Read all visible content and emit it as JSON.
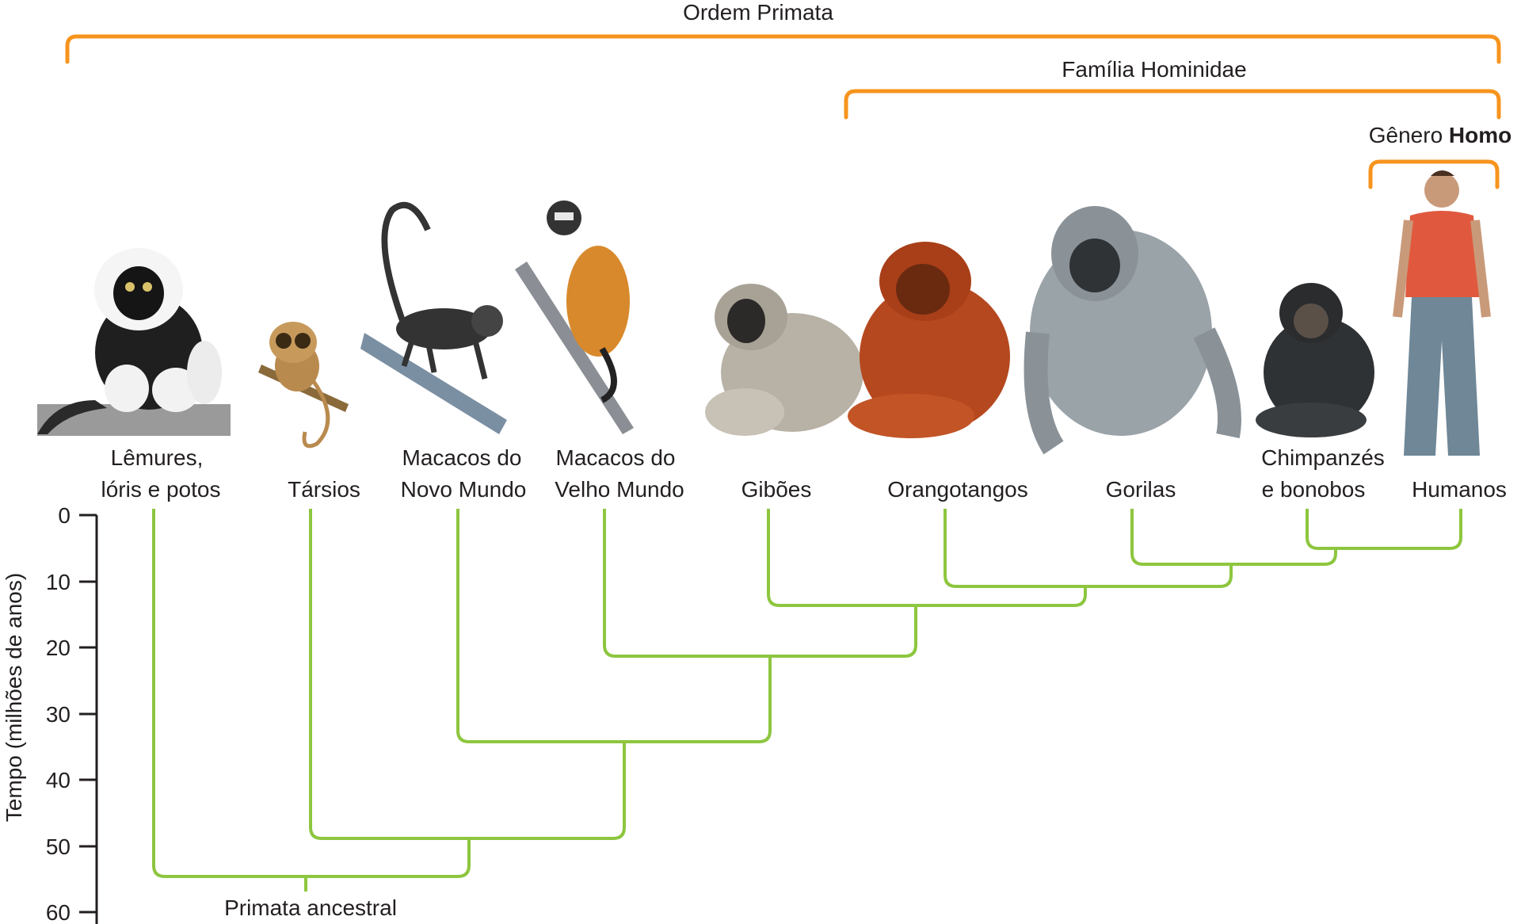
{
  "groups": {
    "order": "Ordem Primata",
    "family": "Família Hominidae",
    "genus_prefix": "Gênero ",
    "genus_name": "Homo"
  },
  "taxa": [
    {
      "id": "lemurs",
      "line1": "Lêmures,",
      "line2": "lóris e potos",
      "icon": "lemur-icon"
    },
    {
      "id": "tarsiers",
      "line1": "",
      "line2": "Társios",
      "icon": "tarsier-icon"
    },
    {
      "id": "new-world",
      "line1": "Macacos do",
      "line2": "Novo Mundo",
      "icon": "new-world-monkey-icon"
    },
    {
      "id": "old-world",
      "line1": "Macacos do",
      "line2": "Velho Mundo",
      "icon": "old-world-monkey-icon"
    },
    {
      "id": "gibbons",
      "line1": "",
      "line2": "Gibões",
      "icon": "gibbon-icon"
    },
    {
      "id": "orangutans",
      "line1": "",
      "line2": "Orangotangos",
      "icon": "orangutan-icon"
    },
    {
      "id": "gorillas",
      "line1": "",
      "line2": "Gorilas",
      "icon": "gorilla-icon"
    },
    {
      "id": "chimps",
      "line1": "Chimpanzés",
      "line2": "e bonobos",
      "icon": "chimpanzee-icon"
    },
    {
      "id": "humans",
      "line1": "",
      "line2": "Humanos",
      "icon": "human-icon"
    }
  ],
  "axis": {
    "label": "Tempo (milhões de anos)",
    "ticks": [
      "0",
      "10",
      "20",
      "30",
      "40",
      "50",
      "60"
    ]
  },
  "root_label": "Primata ancestral",
  "colors": {
    "bracket": "#f7941d",
    "branch": "#8dc63f"
  }
}
